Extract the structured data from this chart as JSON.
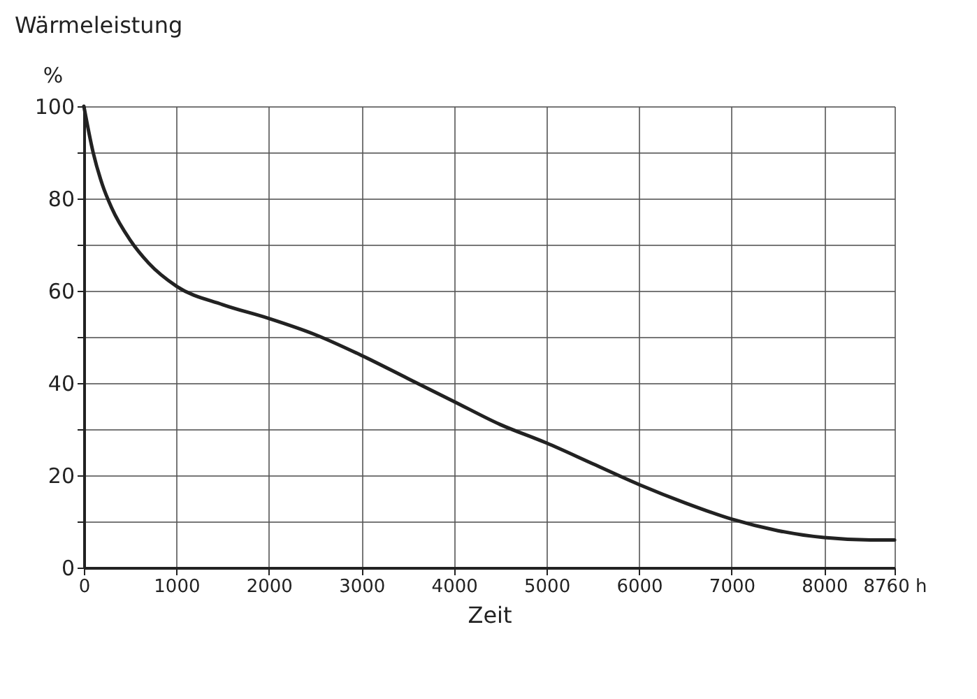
{
  "chart_data": {
    "type": "line",
    "xlabel": "Zeit",
    "ylabel": "Wärmeleistung",
    "annotations": [
      "%"
    ],
    "x": [
      0,
      100,
      200,
      300,
      500,
      700,
      1000,
      1500,
      2000,
      2500,
      3000,
      3500,
      4000,
      4500,
      5000,
      5500,
      6000,
      6500,
      7000,
      7500,
      8000,
      8500,
      8760
    ],
    "series": [
      {
        "color": "#222222",
        "values": [
          100,
          90,
          83,
          78,
          71,
          66,
          61,
          57,
          54,
          50.5,
          46,
          41,
          36,
          31,
          27,
          22.5,
          18,
          14,
          10.5,
          8,
          6.5,
          6,
          6
        ]
      }
    ],
    "xlim": [
      0,
      8760
    ],
    "ylim": [
      0,
      100
    ],
    "xticks": [
      0,
      1000,
      2000,
      3000,
      4000,
      5000,
      6000,
      7000,
      8000,
      {
        "value": 8760,
        "label": "8760 h"
      }
    ],
    "yticks": [
      0,
      {
        "value": 10,
        "label": null
      },
      20,
      {
        "value": 30,
        "label": null
      },
      40,
      {
        "value": 50,
        "label": null
      },
      60,
      {
        "value": 70,
        "label": null
      },
      80,
      {
        "value": 90,
        "label": null
      },
      100
    ],
    "grid": true,
    "marker": "none",
    "line_style": "solid"
  }
}
